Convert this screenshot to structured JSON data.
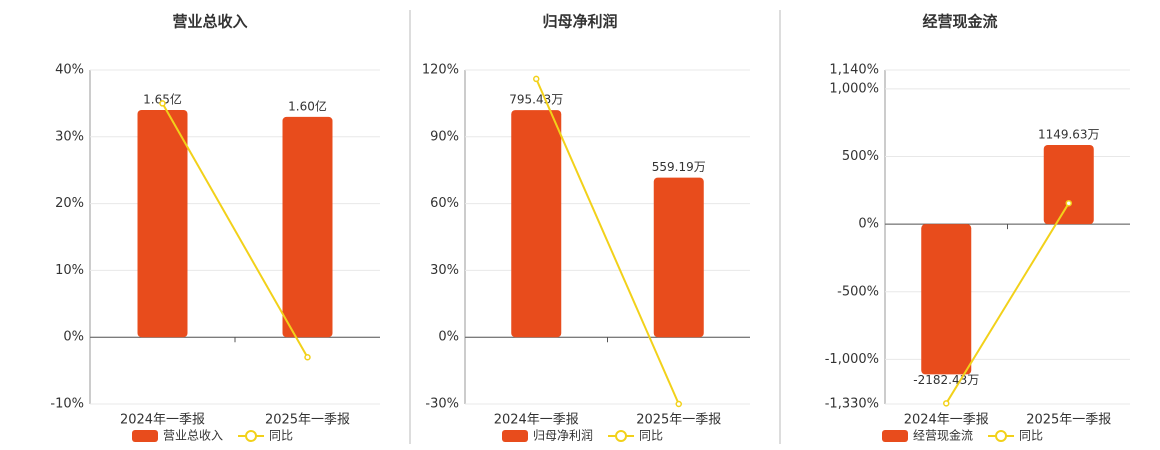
{
  "chart_data": [
    {
      "type": "bar",
      "title": "营业总收入",
      "categories": [
        "2024年一季报",
        "2025年一季报"
      ],
      "series": [
        {
          "name": "营业总收入",
          "color": "#e84c1c",
          "axis": "y2",
          "values": [
            1.65,
            1.6
          ],
          "value_labels": [
            "1.65亿",
            "1.60亿"
          ]
        },
        {
          "name": "同比",
          "type": "line",
          "color": "#f2d11a",
          "values": [
            35,
            -3
          ]
        }
      ],
      "ylim": [
        -10,
        40
      ],
      "yticks": [
        {
          "value": -10,
          "label": "-10%"
        },
        {
          "value": 0,
          "label": "0%"
        },
        {
          "value": 10,
          "label": "10%"
        },
        {
          "value": 20,
          "label": "20%"
        },
        {
          "value": 30,
          "label": "30%"
        },
        {
          "value": 40,
          "label": "40%"
        }
      ],
      "y2lim": [
        -0.485,
        1.94
      ],
      "grid": true
    },
    {
      "type": "bar",
      "title": "归母净利润",
      "categories": [
        "2024年一季报",
        "2025年一季报"
      ],
      "series": [
        {
          "name": "归母净利润",
          "color": "#e84c1c",
          "axis": "y2",
          "values": [
            795.43,
            559.19
          ],
          "value_labels": [
            "795.43万",
            "559.19万"
          ]
        },
        {
          "name": "同比",
          "type": "line",
          "color": "#f2d11a",
          "values": [
            116,
            -30
          ]
        }
      ],
      "ylim": [
        -30,
        120
      ],
      "yticks": [
        {
          "value": -30,
          "label": "-30%"
        },
        {
          "value": 0,
          "label": "0%"
        },
        {
          "value": 30,
          "label": "30%"
        },
        {
          "value": 60,
          "label": "60%"
        },
        {
          "value": 90,
          "label": "90%"
        },
        {
          "value": 120,
          "label": "120%"
        }
      ],
      "y2lim": [
        -234,
        936
      ],
      "grid": true
    },
    {
      "type": "bar",
      "title": "经营现金流",
      "categories": [
        "2024年一季报",
        "2025年一季报"
      ],
      "series": [
        {
          "name": "经营现金流",
          "color": "#e84c1c",
          "axis": "y2",
          "values": [
            -2182.43,
            1149.63
          ],
          "value_labels": [
            "-2182.43万",
            "1149.63万"
          ]
        },
        {
          "name": "同比",
          "type": "line",
          "color": "#f2d11a",
          "values": [
            -1325,
            155
          ]
        }
      ],
      "ylim": [
        -1330,
        1140
      ],
      "yticks": [
        {
          "value": -1330,
          "label": "-1,330%"
        },
        {
          "value": -1000,
          "label": "-1,000%"
        },
        {
          "value": -500,
          "label": "-500%"
        },
        {
          "value": 0,
          "label": "0%"
        },
        {
          "value": 500,
          "label": "500%"
        },
        {
          "value": 1000,
          "label": "1,000%"
        },
        {
          "value": 1140,
          "label": "1,140%"
        }
      ],
      "y2lim": [
        -2612,
        2239
      ],
      "grid": true
    }
  ]
}
